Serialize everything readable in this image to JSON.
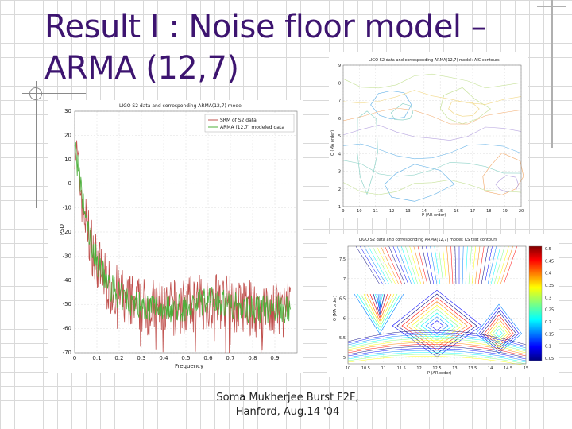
{
  "slide": {
    "title_line1": "Result I : Noise floor model –",
    "title_line2": "ARMA (12,7)",
    "footer_line1": "Soma Mukherjee Burst F2F,",
    "footer_line2": "Hanford, Aug.14 '04"
  },
  "chart_data": [
    {
      "type": "line",
      "title": "LIGO S2 data and corresponding ARMA(12,7) model",
      "xlabel": "Frequency",
      "ylabel": "PSD",
      "xlim": [
        0,
        1
      ],
      "ylim": [
        -70,
        30
      ],
      "x_ticks": [
        "0",
        "0.1",
        "0.2",
        "0.3",
        "0.4",
        "0.5",
        "0.6",
        "0.7",
        "0.8",
        "0.9"
      ],
      "y_ticks": [
        "30",
        "20",
        "10",
        "0",
        "-10",
        "-20",
        "-30",
        "-40",
        "-50",
        "-60",
        "-70"
      ],
      "legend_position": "top-right",
      "series": [
        {
          "name": "SRM of S2 data",
          "color": "#c0504d"
        },
        {
          "name": "ARMA (12,7) modeled data",
          "color": "#4caf3a"
        }
      ]
    },
    {
      "type": "contour",
      "title": "LIGO S2 data and corresponding ARMA(12,7) model: AIC contours",
      "xlabel": "P (AR order)",
      "ylabel": "Q (MA order)",
      "x_ticks": [
        "9",
        "10",
        "11",
        "12",
        "13",
        "14",
        "15",
        "16",
        "17",
        "18",
        "19",
        "20"
      ],
      "y_ticks": [
        "9",
        "8",
        "7",
        "6",
        "5",
        "4",
        "3",
        "2",
        "1"
      ]
    },
    {
      "type": "contour",
      "title": "LIGO S2 data and corresponding ARMA(12,7) model: KS test contours",
      "xlabel": "P (AR order)",
      "ylabel": "Q (MA order)",
      "x_ticks": [
        "10",
        "10.5",
        "11",
        "11.5",
        "12",
        "12.5",
        "13",
        "13.5",
        "14",
        "14.5",
        "15"
      ],
      "y_ticks": [
        "7.5",
        "7",
        "6.5",
        "6",
        "5.5",
        "5"
      ],
      "colorbar_ticks": [
        "0.5",
        "0.45",
        "0.4",
        "0.35",
        "0.3",
        "0.25",
        "0.2",
        "0.15",
        "0.1",
        "0.05"
      ]
    }
  ]
}
